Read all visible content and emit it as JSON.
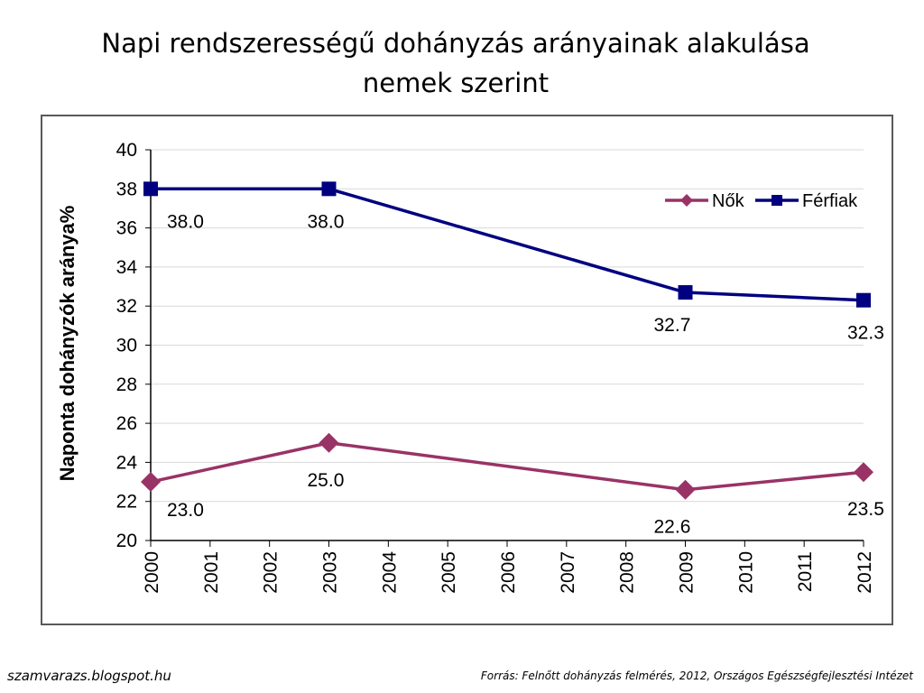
{
  "slide": {
    "title": "Napi rendszerességű dohányzás arányainak alakulása nemek szerint"
  },
  "footer": {
    "left": "szamvarazs.blogspot.hu",
    "right": "Forrás: Felnőtt dohányzás felmérés, 2012, Országos Egészségfejlesztési Intézet"
  },
  "colors": {
    "nok": "#993366",
    "ferfiak": "#000080",
    "grid": "#d9d9d9",
    "axis": "#000000"
  },
  "chart_data": {
    "type": "line",
    "title": "",
    "xlabel": "",
    "ylabel": "Naponta dohányzók aránya%",
    "x": [
      "2000",
      "2001",
      "2002",
      "2003",
      "2004",
      "2005",
      "2006",
      "2007",
      "2008",
      "2009",
      "2010",
      "2011",
      "2012"
    ],
    "ylim": [
      20,
      40
    ],
    "yticks": [
      "20",
      "22",
      "24",
      "26",
      "28",
      "30",
      "32",
      "34",
      "36",
      "38",
      "40"
    ],
    "grid": true,
    "legend": "top-right",
    "series": [
      {
        "name": "Nők",
        "marker": "diamond",
        "points": [
          {
            "x": "2000",
            "y": 23.0,
            "label": "23.0"
          },
          {
            "x": "2003",
            "y": 25.0,
            "label": "25.0"
          },
          {
            "x": "2009",
            "y": 22.6,
            "label": "22.6"
          },
          {
            "x": "2012",
            "y": 23.5,
            "label": "23.5"
          }
        ]
      },
      {
        "name": "Férfiak",
        "marker": "square",
        "points": [
          {
            "x": "2000",
            "y": 38.0,
            "label": "38.0"
          },
          {
            "x": "2003",
            "y": 38.0,
            "label": "38.0"
          },
          {
            "x": "2009",
            "y": 32.7,
            "label": "32.7"
          },
          {
            "x": "2012",
            "y": 32.3,
            "label": "32.3"
          }
        ]
      }
    ]
  }
}
